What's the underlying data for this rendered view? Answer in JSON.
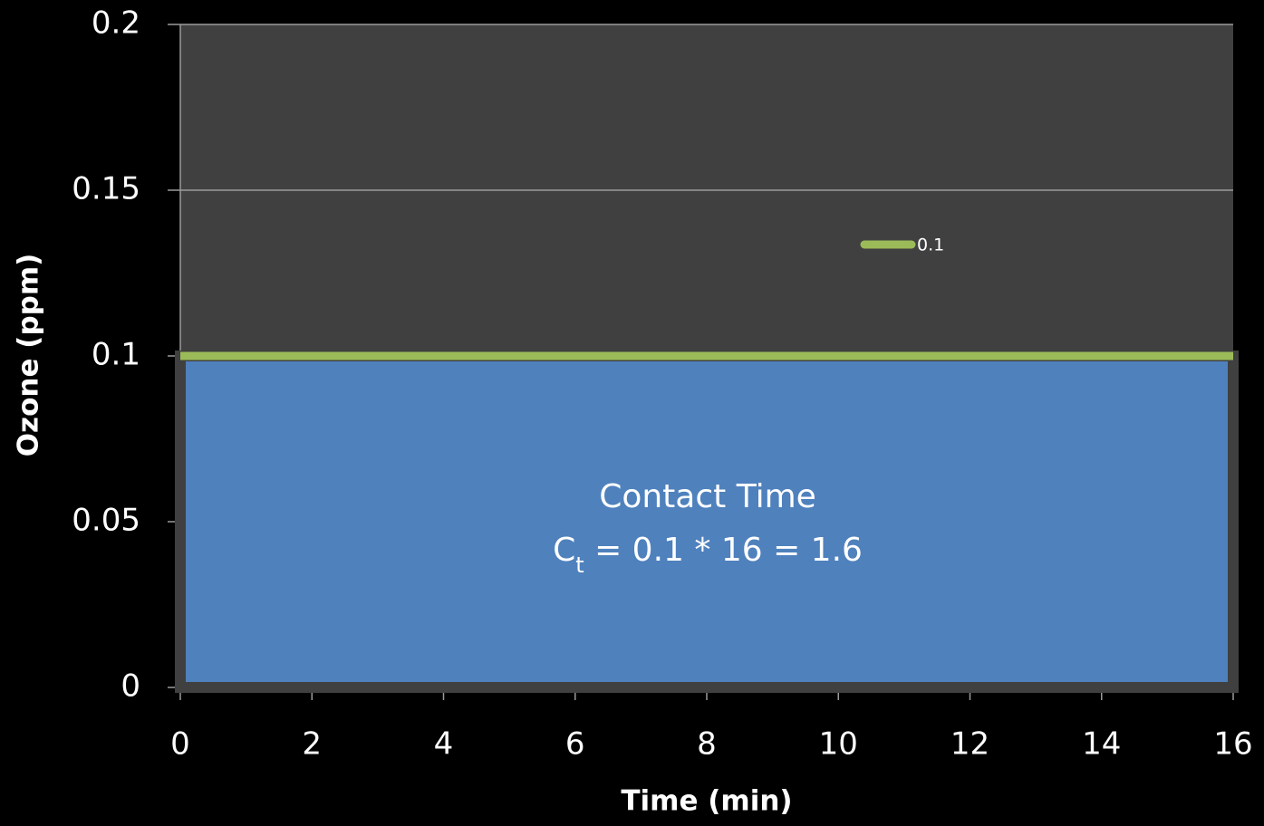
{
  "chart_data": {
    "type": "line",
    "x": [
      0,
      16
    ],
    "series": [
      {
        "name": "0.1",
        "color": "#9bbb59",
        "values": [
          0.1,
          0.1
        ]
      }
    ],
    "area_color": "#4f81bd",
    "plot_background": "#404040",
    "xlim": [
      0,
      16
    ],
    "xticks": [
      0,
      2,
      4,
      6,
      8,
      10,
      12,
      14,
      16
    ],
    "ylim": [
      0,
      0.2
    ],
    "yticks": [
      0,
      0.05,
      0.1,
      0.15,
      0.2
    ],
    "x_label": "Time (min)",
    "y_label": "Ozone (ppm)",
    "grid": true,
    "legend": "upper right",
    "annotation": {
      "line1": "Contact Time",
      "line2": [
        "C",
        "t",
        " = 0.1 * 16 = 1.6"
      ]
    }
  }
}
